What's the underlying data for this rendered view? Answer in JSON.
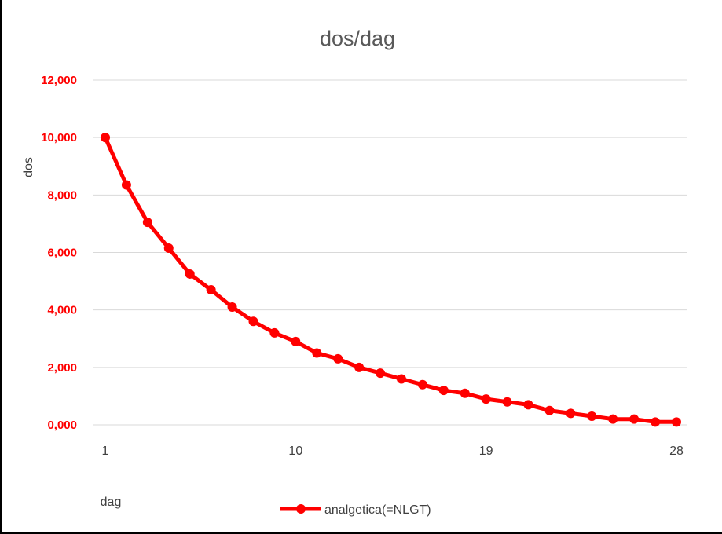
{
  "chart_data": {
    "type": "line",
    "title": "dos/dag",
    "xlabel": "dag",
    "ylabel": "dos",
    "x": [
      1,
      2,
      3,
      4,
      5,
      6,
      7,
      8,
      9,
      10,
      11,
      12,
      13,
      14,
      15,
      16,
      17,
      18,
      19,
      20,
      21,
      22,
      23,
      24,
      25,
      26,
      27,
      28
    ],
    "xtick_labels": [
      "1",
      "10",
      "19",
      "28"
    ],
    "xtick_values": [
      1,
      10,
      19,
      28
    ],
    "ylim": [
      0,
      12
    ],
    "ytick_values": [
      0,
      2,
      4,
      6,
      8,
      10,
      12
    ],
    "ytick_labels": [
      "0,000",
      "2,000",
      "4,000",
      "6,000",
      "8,000",
      "10,000",
      "12,000"
    ],
    "grid": true,
    "legend_position": "bottom",
    "series": [
      {
        "name": "analgetica(=NLGT)",
        "color": "#ff0000",
        "values": [
          10.0,
          8.35,
          7.05,
          6.15,
          5.25,
          4.7,
          4.1,
          3.6,
          3.2,
          2.9,
          2.5,
          2.3,
          2.0,
          1.8,
          1.6,
          1.4,
          1.2,
          1.1,
          0.9,
          0.8,
          0.7,
          0.5,
          0.4,
          0.3,
          0.2,
          0.2,
          0.1,
          0.1
        ]
      }
    ]
  }
}
